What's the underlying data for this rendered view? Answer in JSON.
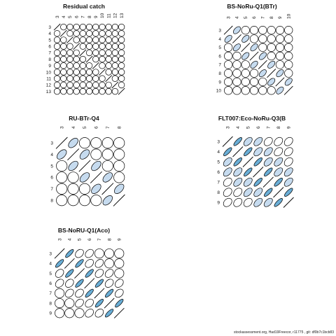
{
  "colors": {
    "fill_high": "#6aaed6",
    "fill_mid": "#c6dbef",
    "fill_none": "#ffffff",
    "stroke": "#000000"
  },
  "footer": "stockassessment.org, Had19Freecor, r11775 , git: df0b7c1bcb83",
  "chart_data": [
    {
      "type": "heatmap",
      "title": "Residual catch",
      "x": [
        "3",
        "4",
        "5",
        "6",
        "7",
        "8",
        "9",
        "10",
        "11",
        "12",
        "13"
      ],
      "y": [
        "3",
        "4",
        "5",
        "6",
        "7",
        "8",
        "9",
        "10",
        "11",
        "12",
        "13"
      ],
      "values": [
        [
          1,
          0.02,
          0.02,
          0.02,
          0.02,
          0.02,
          0.02,
          0.02,
          0.02,
          0.02,
          0.02
        ],
        [
          0.02,
          1,
          0.02,
          0.02,
          0.02,
          0.02,
          0.02,
          0.02,
          0.02,
          0.02,
          0.02
        ],
        [
          0.02,
          0.02,
          1,
          0.02,
          0.02,
          0.02,
          0.02,
          0.02,
          0.02,
          0.02,
          0.02
        ],
        [
          0.02,
          0.02,
          0.02,
          1,
          0.02,
          0.02,
          0.02,
          0.02,
          0.02,
          0.02,
          0.02
        ],
        [
          0.02,
          0.02,
          0.02,
          0.02,
          1,
          0.02,
          0.02,
          0.02,
          0.02,
          0.02,
          0.02
        ],
        [
          0.02,
          0.02,
          0.02,
          0.02,
          0.02,
          1,
          0.02,
          0.02,
          0.02,
          0.02,
          0.02
        ],
        [
          0.02,
          0.02,
          0.02,
          0.02,
          0.02,
          0.02,
          1,
          0.02,
          0.02,
          0.02,
          0.02
        ],
        [
          0.02,
          0.02,
          0.02,
          0.02,
          0.02,
          0.02,
          0.02,
          1,
          0.02,
          0.02,
          0.02
        ],
        [
          0.02,
          0.02,
          0.02,
          0.02,
          0.02,
          0.02,
          0.02,
          0.02,
          1,
          0.02,
          0.02
        ],
        [
          0.02,
          0.02,
          0.02,
          0.02,
          0.02,
          0.02,
          0.02,
          0.02,
          0.02,
          1,
          0.02
        ],
        [
          0.02,
          0.02,
          0.02,
          0.02,
          0.02,
          0.02,
          0.02,
          0.02,
          0.02,
          0.02,
          1
        ]
      ]
    },
    {
      "type": "heatmap",
      "title": "BS-NoRu-Q1(BTr)",
      "x": [
        "3",
        "4",
        "5",
        "6",
        "7",
        "8",
        "9",
        "10"
      ],
      "y": [
        "3",
        "4",
        "5",
        "6",
        "7",
        "8",
        "9",
        "10"
      ],
      "values": [
        [
          1,
          0.5,
          0.02,
          0.02,
          0.02,
          0.02,
          0.02,
          0.02
        ],
        [
          0.5,
          1,
          0.5,
          0.02,
          0.02,
          0.02,
          0.02,
          0.02
        ],
        [
          0.02,
          0.5,
          1,
          0.5,
          0.02,
          0.02,
          0.02,
          0.02
        ],
        [
          0.02,
          0.02,
          0.5,
          1,
          0.5,
          0.02,
          0.02,
          0.02
        ],
        [
          0.02,
          0.02,
          0.02,
          0.5,
          1,
          0.5,
          0.02,
          0.02
        ],
        [
          0.02,
          0.02,
          0.02,
          0.02,
          0.5,
          1,
          0.5,
          0.02
        ],
        [
          0.02,
          0.02,
          0.02,
          0.02,
          0.02,
          0.5,
          1,
          0.5
        ],
        [
          0.02,
          0.02,
          0.02,
          0.02,
          0.02,
          0.02,
          0.5,
          1
        ]
      ]
    },
    {
      "type": "heatmap",
      "title": "RU-BTr-Q4",
      "x": [
        "3",
        "4",
        "5",
        "6",
        "7",
        "8"
      ],
      "y": [
        "3",
        "4",
        "5",
        "6",
        "7",
        "8"
      ],
      "values": [
        [
          1,
          0.5,
          0.02,
          0.02,
          0.02,
          0.02
        ],
        [
          0.5,
          1,
          0.5,
          0.02,
          0.02,
          0.02
        ],
        [
          0.02,
          0.5,
          1,
          0.5,
          0.02,
          0.02
        ],
        [
          0.02,
          0.02,
          0.5,
          1,
          0.5,
          0.02
        ],
        [
          0.02,
          0.02,
          0.02,
          0.5,
          1,
          0.5
        ],
        [
          0.02,
          0.02,
          0.02,
          0.02,
          0.5,
          1
        ]
      ]
    },
    {
      "type": "heatmap",
      "title": "FLT007:Eco-NoRu-Q3(B",
      "x": [
        "3",
        "4",
        "5",
        "6",
        "7",
        "8",
        "9"
      ],
      "y": [
        "3",
        "4",
        "5",
        "6",
        "7",
        "8",
        "9"
      ],
      "values": [
        [
          1,
          0.8,
          0.5,
          0.5,
          0.3,
          0.3,
          0.3
        ],
        [
          0.8,
          1,
          0.8,
          0.5,
          0.5,
          0.3,
          0.3
        ],
        [
          0.5,
          0.8,
          1,
          0.8,
          0.5,
          0.5,
          0.3
        ],
        [
          0.5,
          0.5,
          0.8,
          1,
          0.8,
          0.5,
          0.5
        ],
        [
          0.3,
          0.5,
          0.5,
          0.8,
          1,
          0.8,
          0.5
        ],
        [
          0.3,
          0.3,
          0.5,
          0.5,
          0.8,
          1,
          0.8
        ],
        [
          0.3,
          0.3,
          0.3,
          0.5,
          0.5,
          0.8,
          1
        ]
      ]
    },
    {
      "type": "heatmap",
      "title": "BS-NoRU-Q1(Aco)",
      "x": [
        "3",
        "4",
        "5",
        "6",
        "7",
        "8",
        "9"
      ],
      "y": [
        "3",
        "4",
        "5",
        "6",
        "7",
        "8",
        "9"
      ],
      "values": [
        [
          1,
          0.8,
          0.3,
          0.3,
          0.02,
          0.02,
          0.02
        ],
        [
          0.8,
          1,
          0.8,
          0.3,
          0.3,
          0.02,
          0.02
        ],
        [
          0.3,
          0.8,
          1,
          0.8,
          0.3,
          0.3,
          0.02
        ],
        [
          0.3,
          0.3,
          0.8,
          1,
          0.8,
          0.3,
          0.3
        ],
        [
          0.02,
          0.3,
          0.3,
          0.8,
          1,
          0.8,
          0.3
        ],
        [
          0.02,
          0.02,
          0.3,
          0.3,
          0.8,
          1,
          0.8
        ],
        [
          0.02,
          0.02,
          0.02,
          0.3,
          0.3,
          0.8,
          1
        ]
      ]
    }
  ]
}
